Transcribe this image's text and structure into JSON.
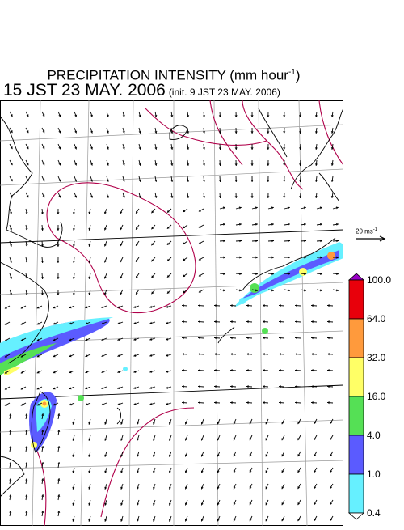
{
  "title": {
    "main": "PRECIPITATION INTENSITY (mm hour",
    "unit_sup": "-1",
    "close": ")"
  },
  "valid_time": "15 JST 23 MAY. 2006",
  "init_time": "(init. 9 JST 23 MAY. 2006)",
  "reference_vector": {
    "label": "20 ms",
    "unit_sup": "-1"
  },
  "colorbar": {
    "levels": [
      "100.0",
      "64.0",
      "32.0",
      "16.0",
      "4.0",
      "1.0",
      "0.4"
    ],
    "colors": [
      "#9a00c8",
      "#e8000b",
      "#ff9a3c",
      "#ffff66",
      "#55e055",
      "#5b5bff",
      "#66f0ff",
      "#ffffff"
    ]
  },
  "map": {
    "coastline_color": "#000000",
    "contour_color": "#b0004a",
    "grid_color": "#999999",
    "wind_arrow_color": "#000000"
  }
}
